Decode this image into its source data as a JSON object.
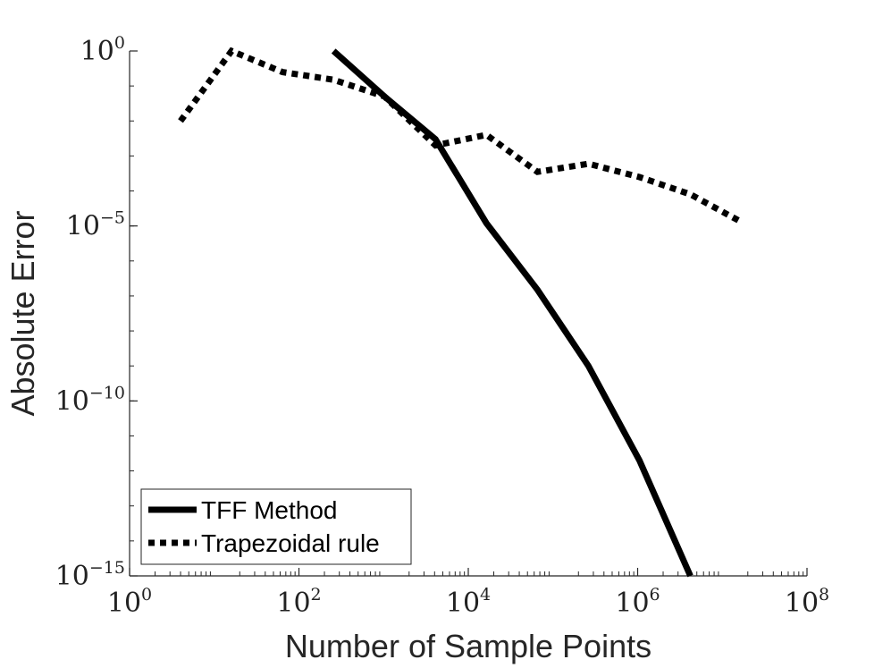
{
  "chart_data": {
    "type": "line",
    "title": "",
    "xlabel": "Number of Sample Points",
    "ylabel": "Absolute Error",
    "xscale": "log",
    "yscale": "log",
    "xlim": [
      1,
      100000000
    ],
    "ylim": [
      1e-15,
      1
    ],
    "x_ticks": [
      {
        "base": "10",
        "exp": "0",
        "value": 1
      },
      {
        "base": "10",
        "exp": "2",
        "value": 100
      },
      {
        "base": "10",
        "exp": "4",
        "value": 10000
      },
      {
        "base": "10",
        "exp": "6",
        "value": 1000000
      },
      {
        "base": "10",
        "exp": "8",
        "value": 100000000
      }
    ],
    "y_ticks": [
      {
        "base": "10",
        "exp": "0",
        "value": 1
      },
      {
        "base": "10",
        "exp": "−5",
        "value": 1e-05
      },
      {
        "base": "10",
        "exp": "−10",
        "value": 1e-10
      },
      {
        "base": "10",
        "exp": "−15",
        "value": 1e-15
      }
    ],
    "grid": false,
    "legend_position": "bottom-left",
    "series": [
      {
        "name": "TFF Method",
        "style": "solid",
        "color": "#000000",
        "points": [
          [
            256,
            1.0
          ],
          [
            1024,
            0.05
          ],
          [
            4096,
            0.003
          ],
          [
            16384,
            1.2e-05
          ],
          [
            65536,
            1.5e-07
          ],
          [
            262144,
            1e-09
          ],
          [
            1048576,
            2e-12
          ],
          [
            4194304,
            1e-15
          ]
        ]
      },
      {
        "name": "Trapezoidal rule",
        "style": "dotted",
        "color": "#000000",
        "points": [
          [
            4,
            0.01
          ],
          [
            16,
            1.0
          ],
          [
            64,
            0.25
          ],
          [
            256,
            0.15
          ],
          [
            1024,
            0.05
          ],
          [
            4096,
            0.002
          ],
          [
            16384,
            0.004
          ],
          [
            65536,
            0.00035
          ],
          [
            262144,
            0.0006
          ],
          [
            1048576,
            0.00025
          ],
          [
            4194304,
            8e-05
          ],
          [
            16777216,
            1.3e-05
          ]
        ]
      }
    ]
  }
}
